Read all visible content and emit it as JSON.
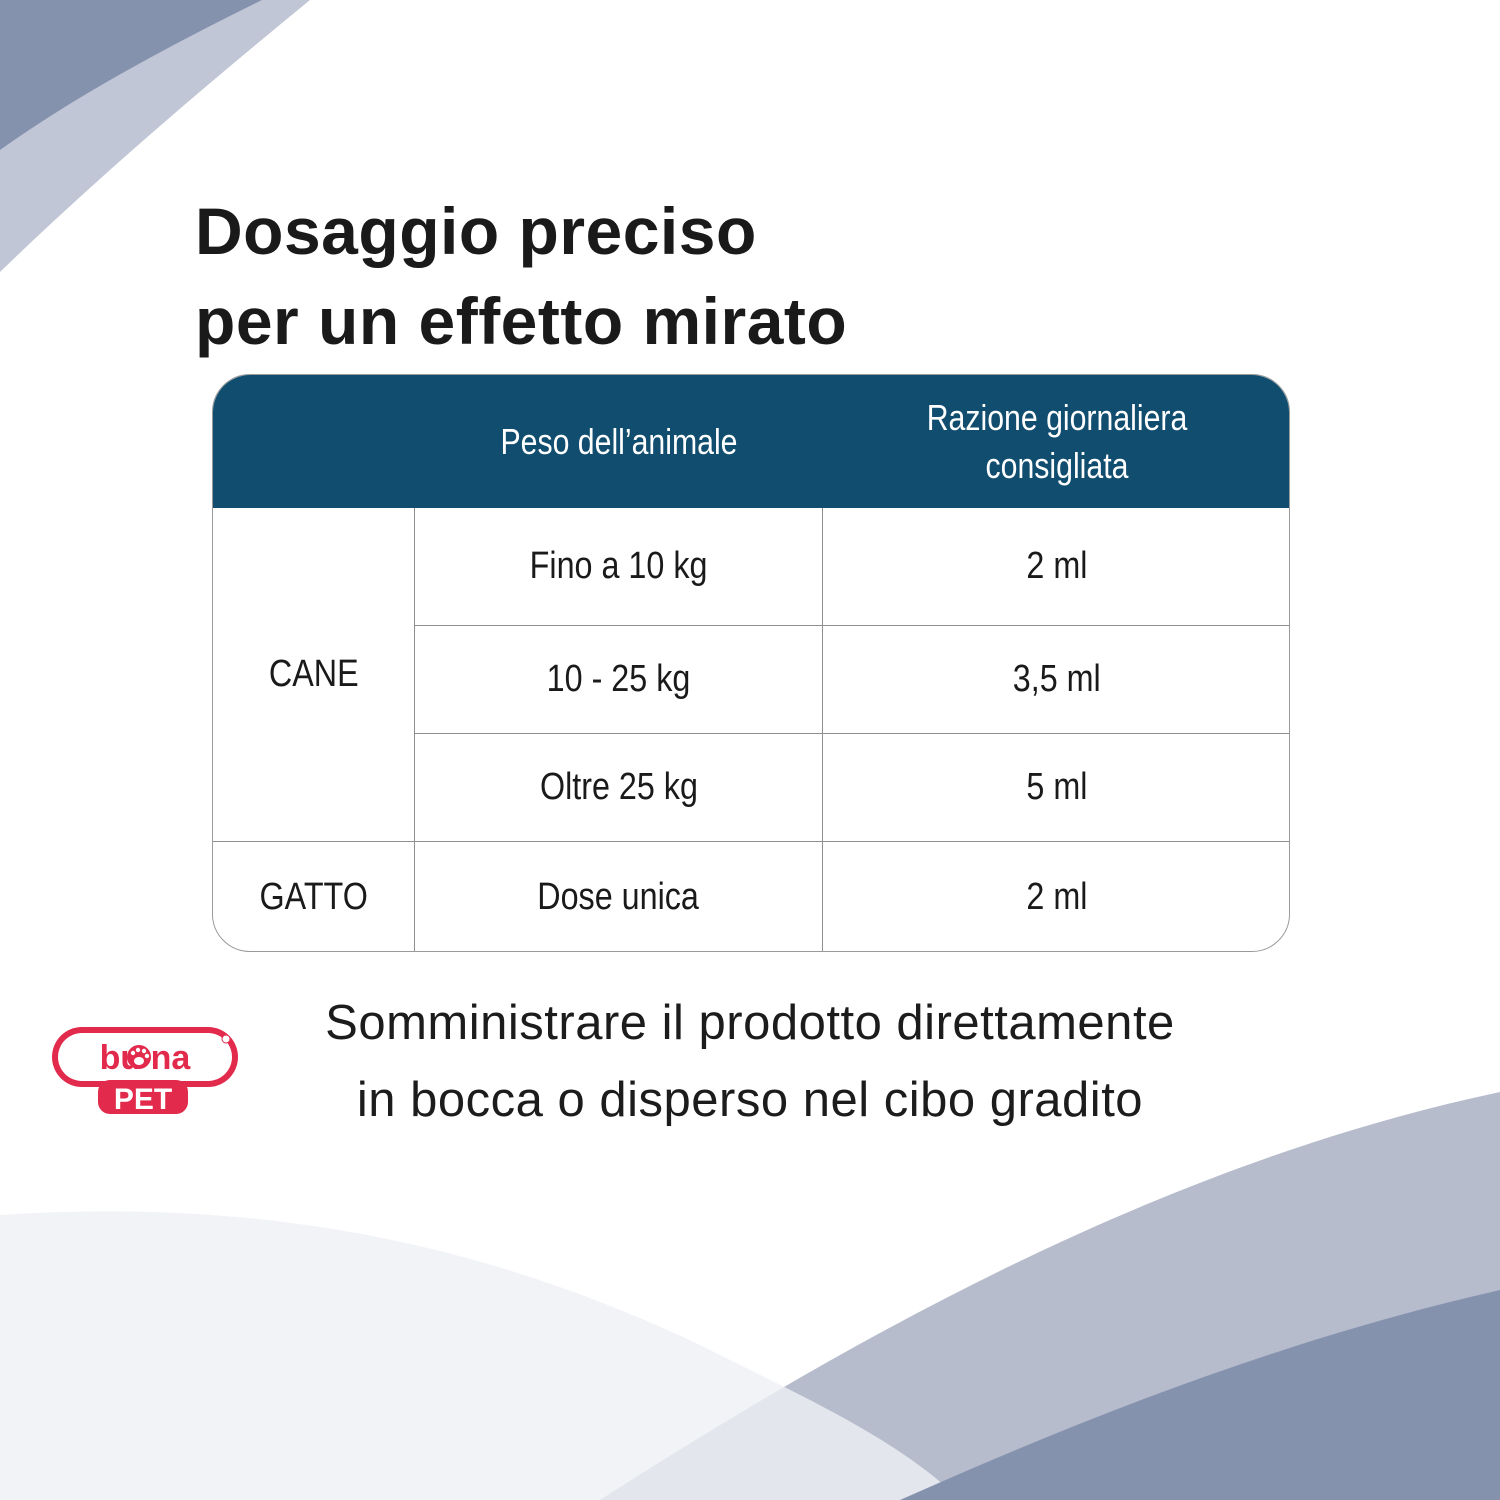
{
  "colors": {
    "header": "#104d6f",
    "wave_light": "#b7bccd",
    "wave_dark": "#8592ae",
    "logo_red": "#e22a4c"
  },
  "title": {
    "line1": "Dosaggio preciso",
    "line2": "per un effetto mirato"
  },
  "table": {
    "headers": {
      "weight": "Peso dell’animale",
      "ration_line1": "Razione giornaliera",
      "ration_line2": "consigliata"
    },
    "groups": [
      {
        "animal": "CANE",
        "rows": [
          {
            "weight": "Fino a 10 kg",
            "dose": "2 ml"
          },
          {
            "weight": "10 - 25 kg",
            "dose": "3,5 ml"
          },
          {
            "weight": "Oltre 25 kg",
            "dose": "5 ml"
          }
        ]
      },
      {
        "animal": "GATTO",
        "rows": [
          {
            "weight": "Dose unica",
            "dose": "2 ml"
          }
        ]
      }
    ]
  },
  "note": {
    "line1": "Somministrare il prodotto direttamente",
    "line2": "in bocca o disperso nel cibo gradito"
  },
  "logo": {
    "word1": "buona",
    "word2": "PET",
    "icon": "paw-print-icon"
  }
}
